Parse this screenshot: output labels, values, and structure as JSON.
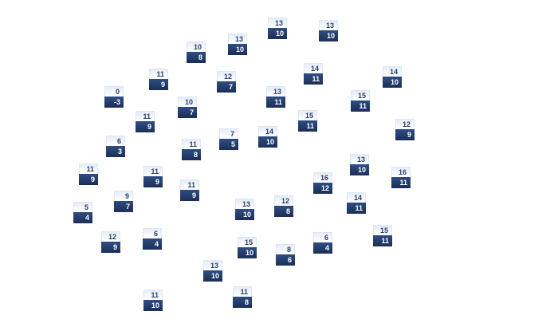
{
  "colors": {
    "top_bg": "#f1f5fb",
    "top_text": "#2b3f6b",
    "bottom_bg": "#24406f",
    "bottom_text": "#ffffff"
  },
  "items": [
    {
      "top": "13",
      "bottom": "10"
    },
    {
      "top": "13",
      "bottom": "10"
    },
    {
      "top": "10",
      "bottom": "8"
    },
    {
      "top": "13",
      "bottom": "10"
    },
    {
      "top": "11",
      "bottom": "9"
    },
    {
      "top": "12",
      "bottom": "7"
    },
    {
      "top": "14",
      "bottom": "11"
    },
    {
      "top": "14",
      "bottom": "10"
    },
    {
      "top": "0",
      "bottom": "-3"
    },
    {
      "top": "10",
      "bottom": "7"
    },
    {
      "top": "13",
      "bottom": "11"
    },
    {
      "top": "15",
      "bottom": "11"
    },
    {
      "top": "11",
      "bottom": "9"
    },
    {
      "top": "15",
      "bottom": "11"
    },
    {
      "top": "12",
      "bottom": "9"
    },
    {
      "top": "6",
      "bottom": "3"
    },
    {
      "top": "7",
      "bottom": "5"
    },
    {
      "top": "14",
      "bottom": "10"
    },
    {
      "top": "11",
      "bottom": "8"
    },
    {
      "top": "13",
      "bottom": "10"
    },
    {
      "top": "11",
      "bottom": "9"
    },
    {
      "top": "11",
      "bottom": "9"
    },
    {
      "top": "16",
      "bottom": "12"
    },
    {
      "top": "16",
      "bottom": "11"
    },
    {
      "top": "11",
      "bottom": "9"
    },
    {
      "top": "9",
      "bottom": "7"
    },
    {
      "top": "13",
      "bottom": "10"
    },
    {
      "top": "12",
      "bottom": "8"
    },
    {
      "top": "14",
      "bottom": "11"
    },
    {
      "top": "5",
      "bottom": "4"
    },
    {
      "top": "15",
      "bottom": "11"
    },
    {
      "top": "6",
      "bottom": "4"
    },
    {
      "top": "12",
      "bottom": "9"
    },
    {
      "top": "6",
      "bottom": "4"
    },
    {
      "top": "15",
      "bottom": "10"
    },
    {
      "top": "8",
      "bottom": "6"
    },
    {
      "top": "13",
      "bottom": "10"
    },
    {
      "top": "11",
      "bottom": "8"
    },
    {
      "top": "11",
      "bottom": "10"
    }
  ]
}
